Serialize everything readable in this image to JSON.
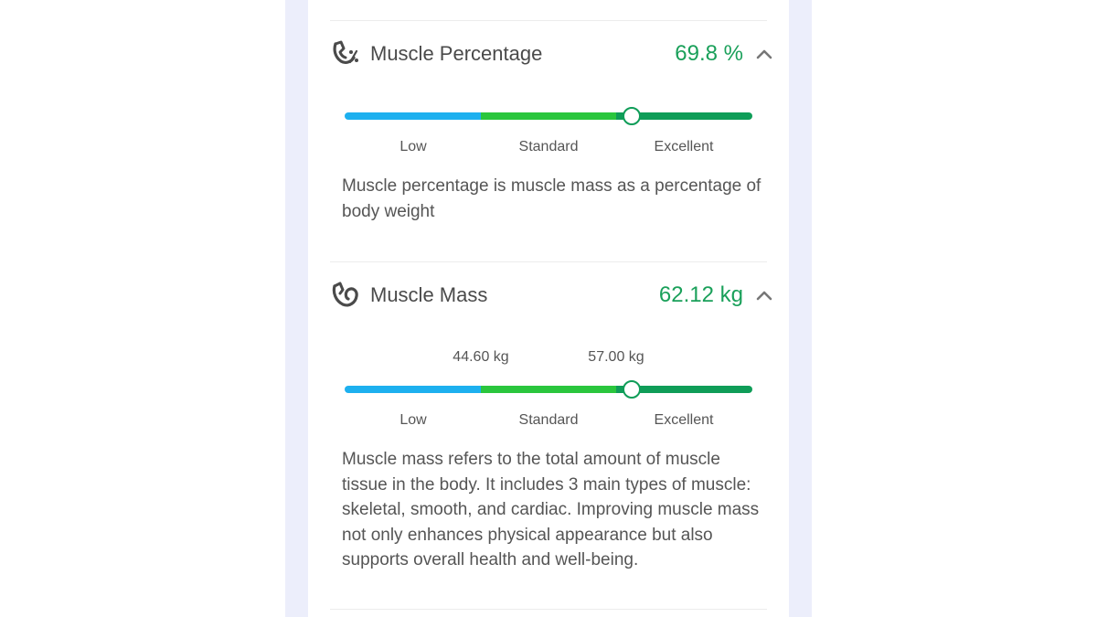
{
  "colors": {
    "low": "#1db0ef",
    "standard": "#2ac63d",
    "excellent": "#0f9d58",
    "value_text": "#1aa05a"
  },
  "sections": [
    {
      "icon": "muscle-percentage-icon",
      "title": "Muscle Percentage",
      "value": "69.8 %",
      "level_fraction": 0.705,
      "range_labels": [],
      "tiers": [
        "Low",
        "Standard",
        "Excellent"
      ],
      "description": "Muscle percentage is muscle mass as a percentage of body weight"
    },
    {
      "icon": "muscle-mass-icon",
      "title": "Muscle Mass",
      "value": "62.12 kg",
      "level_fraction": 0.705,
      "range_labels": [
        "44.60 kg",
        "57.00 kg"
      ],
      "tiers": [
        "Low",
        "Standard",
        "Excellent"
      ],
      "description": "Muscle mass refers to the total amount of muscle tissue in the body. It includes 3 main types of muscle: skeletal, smooth, and cardiac. Improving muscle mass not only enhances physical appearance but also supports overall health and well-being."
    }
  ]
}
